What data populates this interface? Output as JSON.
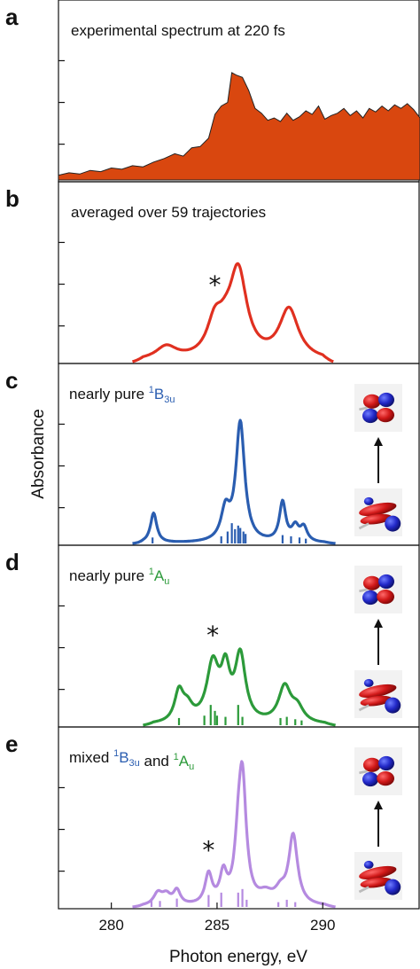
{
  "chart_data": {
    "type": "line",
    "shared_x": {
      "label": "Photon energy, eV",
      "range": [
        277.5,
        294.6
      ],
      "ticks": [
        280,
        285,
        290
      ]
    },
    "ylabel": "Absorbance",
    "panels": [
      {
        "id": "a",
        "label": "a",
        "title": "experimental spectrum at 220 fs",
        "style": "area",
        "color": "#d9470f",
        "ylim": [
          0,
          1.1
        ],
        "yticks": [
          0.3,
          0.65,
          1.0
        ],
        "x": [
          277.5,
          278.0,
          278.5,
          279.0,
          279.5,
          280.0,
          280.5,
          281.0,
          281.5,
          282.0,
          282.5,
          283.0,
          283.4,
          283.8,
          284.2,
          284.6,
          284.9,
          285.2,
          285.5,
          285.7,
          285.9,
          286.2,
          286.5,
          286.8,
          287.1,
          287.4,
          287.7,
          288.0,
          288.3,
          288.6,
          288.9,
          289.2,
          289.5,
          289.8,
          290.1,
          290.4,
          290.7,
          291.0,
          291.3,
          291.6,
          291.9,
          292.2,
          292.5,
          292.8,
          293.1,
          293.4,
          293.7,
          294.0,
          294.3,
          294.6
        ],
        "y": [
          0.04,
          0.06,
          0.05,
          0.08,
          0.07,
          0.1,
          0.09,
          0.12,
          0.11,
          0.15,
          0.18,
          0.22,
          0.2,
          0.27,
          0.28,
          0.35,
          0.55,
          0.62,
          0.65,
          0.9,
          0.88,
          0.86,
          0.75,
          0.6,
          0.56,
          0.5,
          0.52,
          0.49,
          0.56,
          0.5,
          0.53,
          0.58,
          0.55,
          0.62,
          0.51,
          0.54,
          0.56,
          0.6,
          0.54,
          0.58,
          0.52,
          0.6,
          0.57,
          0.62,
          0.58,
          0.63,
          0.6,
          0.64,
          0.59,
          0.52
        ]
      },
      {
        "id": "b",
        "label": "b",
        "title": "averaged over 59 trajectories",
        "style": "line",
        "color": "#e03020",
        "ylim": [
          0,
          1.1
        ],
        "yticks": [
          0.3,
          0.65,
          1.0
        ],
        "peaks": [
          [
            282.6,
            0.11,
            0.6
          ],
          [
            284.9,
            0.28,
            0.45
          ],
          [
            286.0,
            0.72,
            0.5
          ],
          [
            288.4,
            0.42,
            0.55
          ],
          [
            285.4,
            0.12,
            0.4
          ]
        ],
        "xrange": [
          281.0,
          290.5
        ],
        "annotations": [
          {
            "text": "*",
            "x": 284.9
          }
        ]
      },
      {
        "id": "c",
        "label": "c",
        "title_parts": [
          "nearly pure ",
          "1",
          "B",
          "3u"
        ],
        "title_color": "#2a5db0",
        "style": "line+sticks",
        "color": "#2a5db0",
        "ylim": [
          0,
          1.1
        ],
        "yticks": [
          0.3,
          0.65,
          1.0
        ],
        "peaks": [
          [
            282.0,
            0.25,
            0.18
          ],
          [
            285.4,
            0.25,
            0.25
          ],
          [
            286.1,
            1.0,
            0.25
          ],
          [
            288.1,
            0.33,
            0.18
          ],
          [
            288.7,
            0.12,
            0.2
          ],
          [
            289.1,
            0.12,
            0.2
          ]
        ],
        "xrange": [
          281.0,
          290.6
        ],
        "sticks": [
          [
            281.95,
            0.05
          ],
          [
            285.2,
            0.06
          ],
          [
            285.5,
            0.1
          ],
          [
            285.7,
            0.17
          ],
          [
            285.85,
            0.12
          ],
          [
            286.0,
            0.15
          ],
          [
            286.1,
            0.13
          ],
          [
            286.25,
            0.1
          ],
          [
            286.35,
            0.08
          ],
          [
            288.1,
            0.07
          ],
          [
            288.5,
            0.06
          ],
          [
            288.9,
            0.05
          ],
          [
            289.2,
            0.04
          ]
        ]
      },
      {
        "id": "d",
        "label": "d",
        "title_parts": [
          "nearly pure ",
          "1",
          "A",
          "u"
        ],
        "title_color": "#2c9a3a",
        "style": "line+sticks",
        "color": "#2c9a3a",
        "ylim": [
          0,
          1.1
        ],
        "yticks": [
          0.3,
          0.65,
          1.0
        ],
        "peaks": [
          [
            283.2,
            0.25,
            0.25
          ],
          [
            283.6,
            0.12,
            0.3
          ],
          [
            284.8,
            0.48,
            0.35
          ],
          [
            285.4,
            0.38,
            0.25
          ],
          [
            286.1,
            0.55,
            0.3
          ],
          [
            288.2,
            0.3,
            0.35
          ],
          [
            288.8,
            0.12,
            0.35
          ]
        ],
        "xrange": [
          281.5,
          290.6
        ],
        "sticks": [
          [
            283.2,
            0.06
          ],
          [
            284.4,
            0.08
          ],
          [
            284.7,
            0.17
          ],
          [
            284.9,
            0.12
          ],
          [
            285.0,
            0.08
          ],
          [
            285.4,
            0.07
          ],
          [
            286.0,
            0.17
          ],
          [
            286.2,
            0.07
          ],
          [
            288.0,
            0.06
          ],
          [
            288.3,
            0.07
          ],
          [
            288.7,
            0.05
          ],
          [
            289.0,
            0.04
          ]
        ],
        "annotations": [
          {
            "text": "*",
            "x": 284.8
          }
        ]
      },
      {
        "id": "e",
        "label": "e",
        "title_parts": [
          "mixed ",
          "1",
          "B",
          "3u",
          " and ",
          "1",
          "A",
          "u"
        ],
        "title_color": "#2a5db0",
        "title_color_2": "#2c9a3a",
        "style": "line+sticks",
        "color": "#b58ae0",
        "ylim": [
          0,
          1.1
        ],
        "yticks": [
          0.3,
          0.65,
          1.0
        ],
        "peaks": [
          [
            282.2,
            0.1,
            0.25
          ],
          [
            282.6,
            0.08,
            0.25
          ],
          [
            283.1,
            0.12,
            0.2
          ],
          [
            284.6,
            0.25,
            0.2
          ],
          [
            285.3,
            0.24,
            0.2
          ],
          [
            286.2,
            1.0,
            0.22
          ],
          [
            286.0,
            0.35,
            0.2
          ],
          [
            287.3,
            0.08,
            0.4
          ],
          [
            288.6,
            0.58,
            0.25
          ],
          [
            288.0,
            0.1,
            0.3
          ]
        ],
        "xrange": [
          281.0,
          290.6
        ],
        "sticks": [
          [
            281.9,
            0.06
          ],
          [
            282.3,
            0.05
          ],
          [
            283.1,
            0.07
          ],
          [
            284.6,
            0.1
          ],
          [
            285.2,
            0.12
          ],
          [
            286.0,
            0.12
          ],
          [
            286.2,
            0.15
          ],
          [
            286.4,
            0.06
          ],
          [
            287.9,
            0.04
          ],
          [
            288.3,
            0.06
          ],
          [
            288.7,
            0.04
          ]
        ],
        "annotations": [
          {
            "text": "*",
            "x": 284.6
          }
        ]
      }
    ]
  }
}
